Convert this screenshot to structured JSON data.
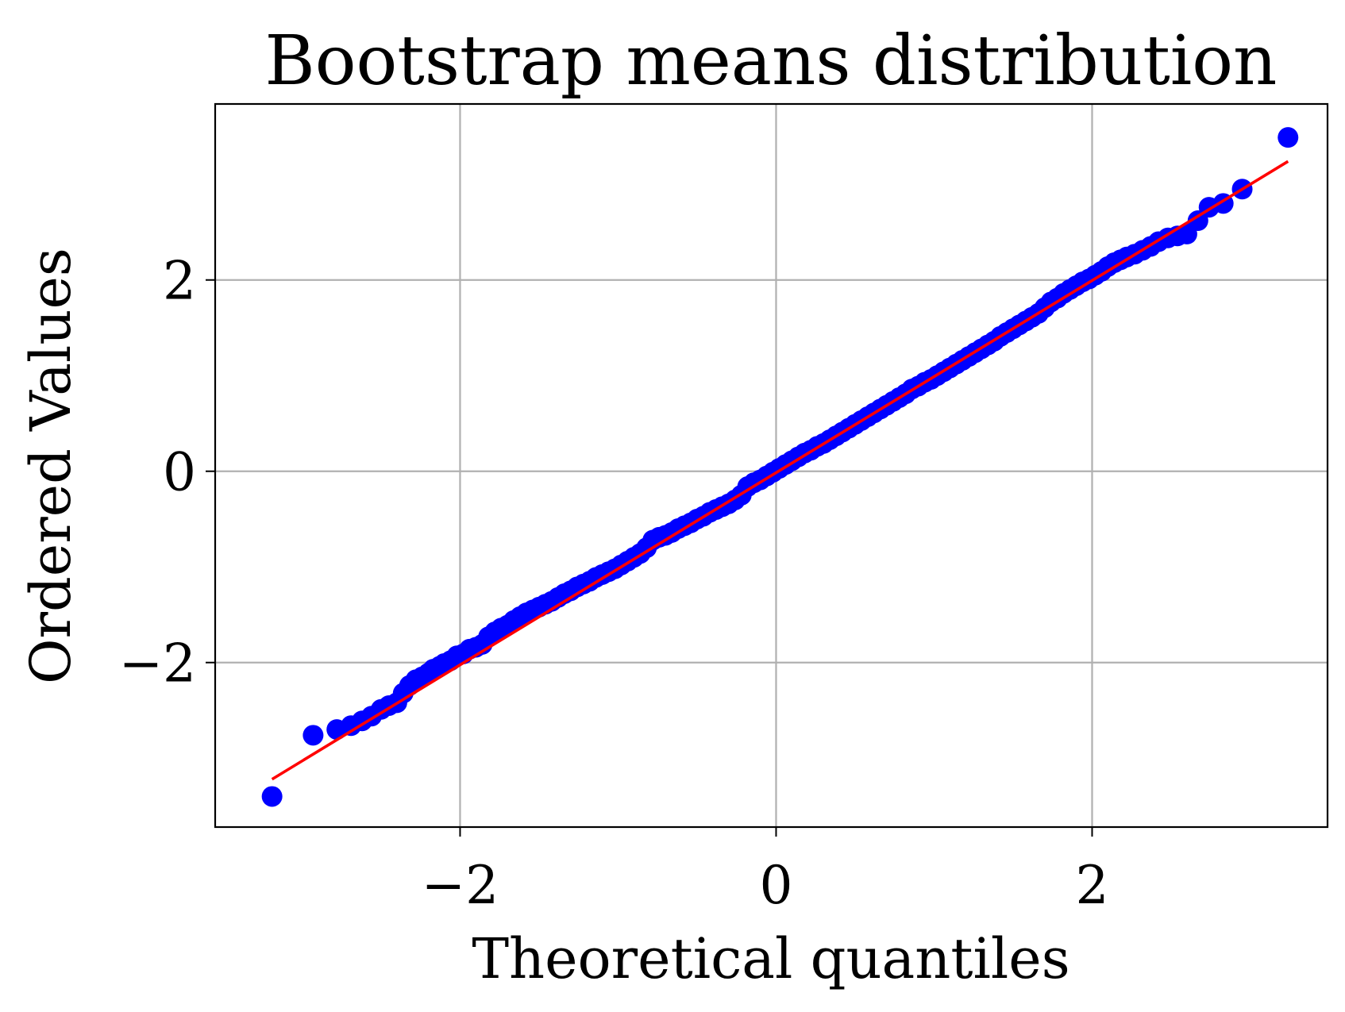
{
  "chart_data": {
    "type": "scatter",
    "title": "Bootstrap means distribution",
    "xlabel": "Theoretical quantiles",
    "ylabel": "Ordered Values",
    "xlim": [
      -3.55,
      3.49
    ],
    "ylim": [
      -3.72,
      3.84
    ],
    "xticks": [
      -2,
      0,
      2
    ],
    "xtick_labels": [
      "−2",
      "0",
      "2"
    ],
    "yticks": [
      -2,
      0,
      2
    ],
    "ytick_labels": [
      "−2",
      "0",
      "2"
    ],
    "grid": true,
    "point_color": "#0000ff",
    "line_color": "#ff0000",
    "fit_line": {
      "x": [
        -3.19,
        3.24
      ],
      "y": [
        -3.22,
        3.24
      ]
    },
    "series": [
      {
        "type": "scatter",
        "x": [
          -3.19,
          -2.93,
          -2.78,
          -2.69,
          -2.62,
          -2.56,
          -2.5,
          -2.45,
          -2.4,
          -2.36,
          -2.32,
          -2.28,
          -2.24,
          -2.2,
          -2.17,
          -2.13,
          -2.1,
          -2.06,
          -2.02,
          -1.98,
          -1.94,
          -1.9,
          -1.86,
          -1.82,
          -1.78,
          -1.74,
          -1.7,
          -1.66,
          -1.62,
          -1.58,
          -1.54,
          -1.5,
          -1.46,
          -1.42,
          -1.38,
          -1.34,
          -1.3,
          -1.26,
          -1.22,
          -1.18,
          -1.14,
          -1.1,
          -1.06,
          -1.02,
          -0.98,
          -0.94,
          -0.9,
          -0.86,
          -0.82,
          -0.78,
          -0.74,
          -0.7,
          -0.66,
          -0.62,
          -0.58,
          -0.54,
          -0.5,
          -0.46,
          -0.42,
          -0.38,
          -0.34,
          -0.3,
          -0.26,
          -0.22,
          -0.18,
          -0.14,
          -0.1,
          -0.06,
          -0.02,
          0.02,
          0.06,
          0.1,
          0.14,
          0.18,
          0.22,
          0.26,
          0.3,
          0.34,
          0.38,
          0.42,
          0.46,
          0.5,
          0.54,
          0.58,
          0.62,
          0.66,
          0.7,
          0.74,
          0.78,
          0.82,
          0.86,
          0.9,
          0.94,
          0.98,
          1.02,
          1.06,
          1.1,
          1.14,
          1.18,
          1.22,
          1.26,
          1.3,
          1.34,
          1.38,
          1.42,
          1.46,
          1.5,
          1.54,
          1.58,
          1.62,
          1.66,
          1.7,
          1.74,
          1.78,
          1.82,
          1.86,
          1.9,
          1.94,
          1.98,
          2.02,
          2.06,
          2.1,
          2.14,
          2.18,
          2.22,
          2.27,
          2.32,
          2.37,
          2.42,
          2.48,
          2.54,
          2.6,
          2.67,
          2.74,
          2.83,
          2.95,
          3.24
        ],
        "y": [
          -3.4,
          -2.76,
          -2.7,
          -2.66,
          -2.61,
          -2.56,
          -2.49,
          -2.45,
          -2.42,
          -2.32,
          -2.24,
          -2.18,
          -2.15,
          -2.11,
          -2.07,
          -2.04,
          -2.01,
          -1.98,
          -1.93,
          -1.91,
          -1.86,
          -1.84,
          -1.81,
          -1.73,
          -1.68,
          -1.64,
          -1.61,
          -1.56,
          -1.52,
          -1.48,
          -1.45,
          -1.42,
          -1.39,
          -1.36,
          -1.32,
          -1.28,
          -1.25,
          -1.21,
          -1.18,
          -1.15,
          -1.11,
          -1.08,
          -1.05,
          -1.02,
          -0.98,
          -0.94,
          -0.9,
          -0.86,
          -0.8,
          -0.72,
          -0.69,
          -0.67,
          -0.64,
          -0.6,
          -0.57,
          -0.54,
          -0.5,
          -0.47,
          -0.43,
          -0.4,
          -0.37,
          -0.34,
          -0.3,
          -0.25,
          -0.16,
          -0.12,
          -0.09,
          -0.05,
          -0.01,
          0.03,
          0.07,
          0.11,
          0.15,
          0.19,
          0.22,
          0.26,
          0.29,
          0.33,
          0.37,
          0.41,
          0.45,
          0.49,
          0.53,
          0.57,
          0.61,
          0.65,
          0.69,
          0.73,
          0.77,
          0.81,
          0.86,
          0.89,
          0.93,
          0.96,
          1.0,
          1.04,
          1.08,
          1.12,
          1.16,
          1.2,
          1.24,
          1.28,
          1.32,
          1.36,
          1.41,
          1.45,
          1.49,
          1.53,
          1.57,
          1.61,
          1.65,
          1.71,
          1.77,
          1.81,
          1.86,
          1.9,
          1.94,
          1.98,
          2.01,
          2.05,
          2.09,
          2.14,
          2.18,
          2.21,
          2.24,
          2.27,
          2.31,
          2.35,
          2.4,
          2.44,
          2.46,
          2.48,
          2.62,
          2.76,
          2.8,
          2.95,
          3.49
        ]
      }
    ]
  }
}
